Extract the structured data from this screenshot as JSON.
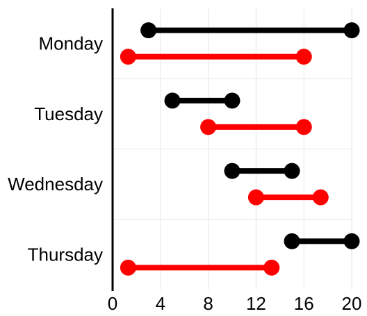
{
  "chart_data": {
    "type": "dumbbell",
    "categories": [
      "Monday",
      "Tuesday",
      "Wednesday",
      "Thursday"
    ],
    "xlim": [
      0,
      20
    ],
    "xticks": [
      0,
      4,
      8,
      12,
      16,
      20
    ],
    "grid": true,
    "series": [
      {
        "color": "#000000",
        "ranges": [
          [
            3,
            20
          ],
          [
            5,
            10
          ],
          [
            10,
            15
          ],
          [
            15,
            20
          ]
        ]
      },
      {
        "color": "#ff0000",
        "ranges": [
          [
            1.3,
            16
          ],
          [
            8,
            16
          ],
          [
            12,
            17.4
          ],
          [
            1.3,
            13.3
          ]
        ]
      }
    ]
  }
}
